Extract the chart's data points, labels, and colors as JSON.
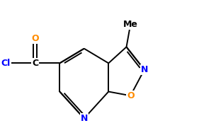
{
  "bg_color": "#ffffff",
  "bond_color": "#000000",
  "atom_colors": {
    "N": "#0000ff",
    "O": "#ff8c00",
    "Cl": "#0000ff",
    "C": "#000000",
    "Me": "#000000"
  },
  "font_size": 9,
  "figsize": [
    2.81,
    1.81
  ],
  "dpi": 100,
  "xlim": [
    0.0,
    8.5
  ],
  "ylim": [
    0.5,
    5.5
  ]
}
